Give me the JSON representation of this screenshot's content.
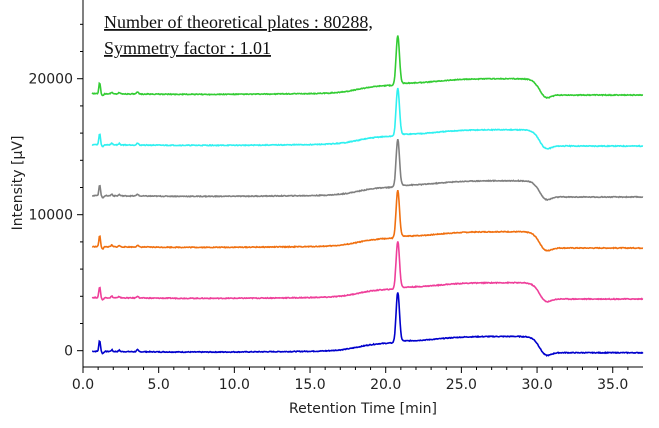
{
  "chart_data": {
    "type": "line",
    "xlabel": "Retention Time [min]",
    "ylabel": "Intensity [µV]",
    "xlim": [
      0,
      37
    ],
    "ylim": [
      -1200,
      25200
    ],
    "x_ticks": [
      0,
      5,
      10,
      15,
      20,
      25,
      30,
      35
    ],
    "x_tick_labels": [
      "0.0",
      "5.0",
      "10.0",
      "15.0",
      "20.0",
      "25.0",
      "30.0",
      "35.0"
    ],
    "y_ticks": [
      0,
      10000,
      20000
    ],
    "y_tick_labels": [
      "0",
      "10000",
      "20000"
    ],
    "grid": false,
    "annotations": [
      "Number of theoretical plates : 80288,",
      "Symmetry factor : 1.01"
    ],
    "peak_time": 20.8,
    "series": [
      {
        "color": "#0000cc",
        "baseline": 0,
        "peak_height": 3600
      },
      {
        "color": "#ee3f9a",
        "baseline": 3950,
        "peak_height": 3400
      },
      {
        "color": "#f07010",
        "baseline": 7700,
        "peak_height": 3400
      },
      {
        "color": "#808080",
        "baseline": 11450,
        "peak_height": 3400
      },
      {
        "color": "#2ff0f0",
        "baseline": 15200,
        "peak_height": 3400
      },
      {
        "color": "#33cc33",
        "baseline": 18950,
        "peak_height": 3500
      }
    ]
  }
}
